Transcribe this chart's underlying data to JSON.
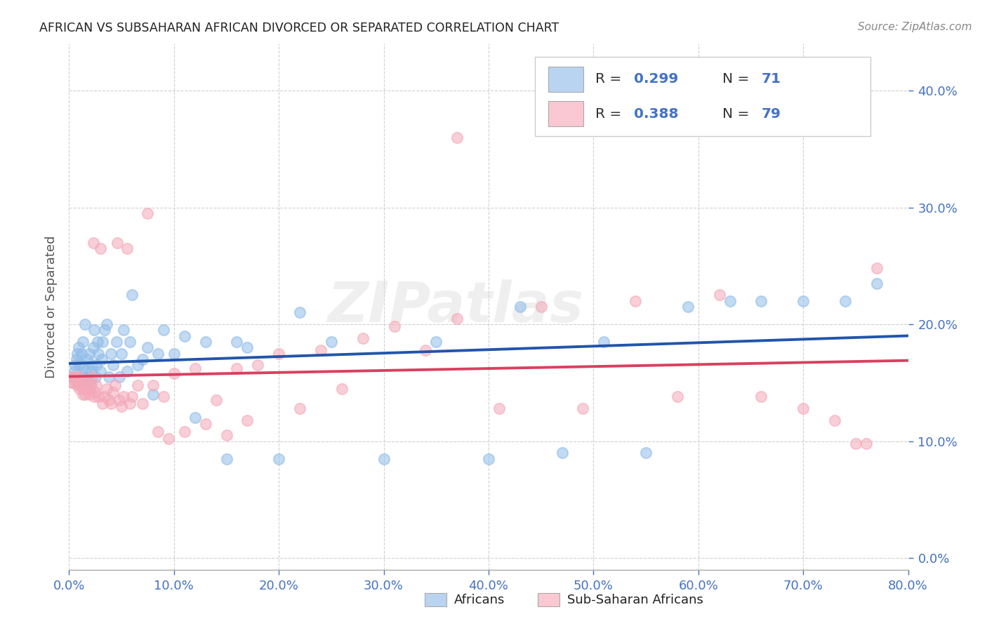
{
  "title": "AFRICAN VS SUBSAHARAN AFRICAN DIVORCED OR SEPARATED CORRELATION CHART",
  "source": "Source: ZipAtlas.com",
  "xlim": [
    0.0,
    0.8
  ],
  "ylim": [
    -0.01,
    0.44
  ],
  "yticks": [
    0.0,
    0.1,
    0.2,
    0.3,
    0.4
  ],
  "xticks": [
    0.0,
    0.1,
    0.2,
    0.3,
    0.4,
    0.5,
    0.6,
    0.7,
    0.8
  ],
  "series_blue": {
    "R": 0.299,
    "N": 71,
    "dot_color": "#90bce8",
    "line_color": "#2255aa",
    "x": [
      0.003,
      0.005,
      0.006,
      0.007,
      0.008,
      0.009,
      0.01,
      0.01,
      0.011,
      0.012,
      0.013,
      0.014,
      0.015,
      0.015,
      0.016,
      0.017,
      0.018,
      0.019,
      0.02,
      0.021,
      0.022,
      0.023,
      0.024,
      0.025,
      0.026,
      0.027,
      0.028,
      0.03,
      0.031,
      0.032,
      0.034,
      0.036,
      0.038,
      0.04,
      0.042,
      0.045,
      0.048,
      0.05,
      0.052,
      0.055,
      0.058,
      0.06,
      0.065,
      0.07,
      0.075,
      0.08,
      0.085,
      0.09,
      0.1,
      0.11,
      0.12,
      0.13,
      0.15,
      0.16,
      0.17,
      0.2,
      0.22,
      0.25,
      0.3,
      0.35,
      0.4,
      0.43,
      0.47,
      0.51,
      0.55,
      0.59,
      0.63,
      0.66,
      0.7,
      0.74,
      0.77
    ],
    "y": [
      0.155,
      0.16,
      0.165,
      0.17,
      0.175,
      0.18,
      0.15,
      0.165,
      0.155,
      0.175,
      0.185,
      0.165,
      0.155,
      0.2,
      0.16,
      0.17,
      0.155,
      0.175,
      0.15,
      0.16,
      0.165,
      0.18,
      0.195,
      0.155,
      0.165,
      0.185,
      0.175,
      0.16,
      0.17,
      0.185,
      0.195,
      0.2,
      0.155,
      0.175,
      0.165,
      0.185,
      0.155,
      0.175,
      0.195,
      0.16,
      0.185,
      0.225,
      0.165,
      0.17,
      0.18,
      0.14,
      0.175,
      0.195,
      0.175,
      0.19,
      0.12,
      0.185,
      0.085,
      0.185,
      0.18,
      0.085,
      0.21,
      0.185,
      0.085,
      0.185,
      0.085,
      0.215,
      0.09,
      0.185,
      0.09,
      0.215,
      0.22,
      0.22,
      0.22,
      0.22,
      0.235
    ]
  },
  "series_pink": {
    "R": 0.388,
    "N": 79,
    "dot_color": "#f4a8b8",
    "line_color": "#d94060",
    "x": [
      0.002,
      0.003,
      0.004,
      0.005,
      0.006,
      0.007,
      0.008,
      0.009,
      0.01,
      0.01,
      0.011,
      0.012,
      0.013,
      0.014,
      0.015,
      0.016,
      0.017,
      0.018,
      0.019,
      0.02,
      0.021,
      0.022,
      0.023,
      0.024,
      0.025,
      0.026,
      0.028,
      0.03,
      0.032,
      0.034,
      0.036,
      0.038,
      0.04,
      0.042,
      0.044,
      0.046,
      0.048,
      0.05,
      0.052,
      0.055,
      0.058,
      0.06,
      0.065,
      0.07,
      0.075,
      0.08,
      0.085,
      0.09,
      0.095,
      0.1,
      0.11,
      0.12,
      0.13,
      0.14,
      0.15,
      0.16,
      0.17,
      0.18,
      0.2,
      0.22,
      0.24,
      0.26,
      0.28,
      0.31,
      0.34,
      0.37,
      0.41,
      0.45,
      0.49,
      0.54,
      0.58,
      0.62,
      0.66,
      0.7,
      0.73,
      0.75,
      0.76,
      0.77,
      0.37
    ],
    "y": [
      0.15,
      0.155,
      0.15,
      0.155,
      0.155,
      0.15,
      0.148,
      0.152,
      0.145,
      0.155,
      0.148,
      0.152,
      0.14,
      0.145,
      0.14,
      0.148,
      0.145,
      0.152,
      0.14,
      0.145,
      0.148,
      0.155,
      0.27,
      0.138,
      0.142,
      0.148,
      0.138,
      0.265,
      0.132,
      0.138,
      0.145,
      0.135,
      0.132,
      0.142,
      0.148,
      0.27,
      0.135,
      0.13,
      0.138,
      0.265,
      0.132,
      0.138,
      0.148,
      0.132,
      0.295,
      0.148,
      0.108,
      0.138,
      0.102,
      0.158,
      0.108,
      0.162,
      0.115,
      0.135,
      0.105,
      0.162,
      0.118,
      0.165,
      0.175,
      0.128,
      0.178,
      0.145,
      0.188,
      0.198,
      0.178,
      0.205,
      0.128,
      0.215,
      0.128,
      0.22,
      0.138,
      0.225,
      0.138,
      0.128,
      0.118,
      0.098,
      0.098,
      0.248,
      0.36
    ]
  },
  "watermark_text": "ZIPatlas",
  "bg_color": "#ffffff",
  "grid_color": "#d0d0d0",
  "title_color": "#222222",
  "source_color": "#888888",
  "blue_legend_color": "#b8d4f0",
  "pink_legend_color": "#f9c8d2",
  "axis_num_color": "#4472c4",
  "ylabel": "Divorced or Separated",
  "bottom_label_blue": "Africans",
  "bottom_label_pink": "Sub-Saharan Africans"
}
